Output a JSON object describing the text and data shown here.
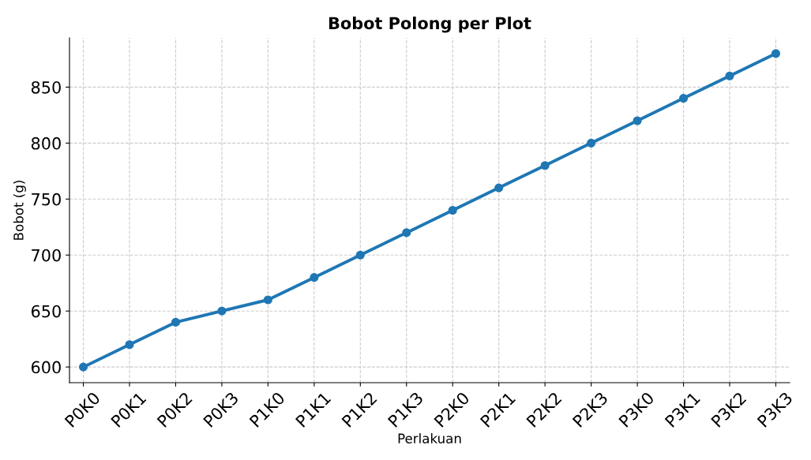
{
  "chart_data": {
    "type": "line",
    "title": "Bobot Polong per Plot",
    "xlabel": "Perlakuan",
    "ylabel": "Bobot (g)",
    "categories": [
      "P0K0",
      "P0K1",
      "P0K2",
      "P0K3",
      "P1K0",
      "P1K1",
      "P1K2",
      "P1K3",
      "P2K0",
      "P2K1",
      "P2K2",
      "P2K3",
      "P3K0",
      "P3K1",
      "P3K2",
      "P3K3"
    ],
    "series": [
      {
        "color": "#1f77b4",
        "values": [
          600,
          620,
          640,
          650,
          660,
          680,
          700,
          720,
          740,
          760,
          780,
          800,
          820,
          840,
          860,
          880
        ]
      }
    ],
    "ylim": [
      586,
      894
    ],
    "yticks": [
      600,
      650,
      700,
      750,
      800,
      850
    ],
    "grid": true,
    "marker": "circle",
    "line_style": "solid"
  }
}
